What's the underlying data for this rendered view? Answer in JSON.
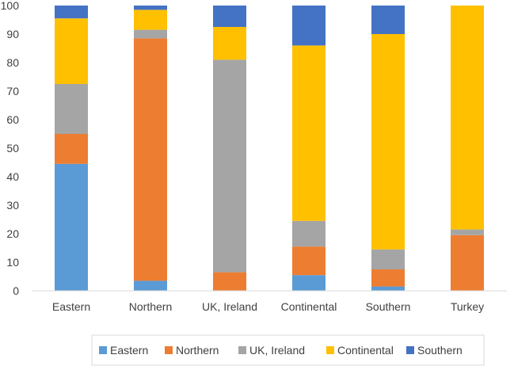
{
  "chart_data": {
    "type": "bar",
    "stacked": true,
    "categories": [
      "Eastern",
      "Northern",
      "UK, Ireland",
      "Continental",
      "Southern",
      "Turkey"
    ],
    "series": [
      {
        "name": "Eastern",
        "color": "#5B9BD5",
        "values": [
          44.5,
          3.5,
          0,
          5.5,
          1.5,
          0
        ]
      },
      {
        "name": "Northern",
        "color": "#ED7D31",
        "values": [
          10.5,
          85,
          6.5,
          10,
          6,
          19.5
        ]
      },
      {
        "name": "UK, Ireland",
        "color": "#A5A5A5",
        "values": [
          17.5,
          3,
          74.5,
          9,
          7,
          2
        ]
      },
      {
        "name": "Continental",
        "color": "#FFC000",
        "values": [
          23,
          7,
          11.5,
          61.5,
          75.5,
          78.5
        ]
      },
      {
        "name": "Southern",
        "color": "#4472C4",
        "values": [
          4.5,
          1.5,
          7.5,
          14,
          10,
          0
        ]
      }
    ],
    "ylim": [
      0,
      100
    ],
    "yticks": [
      0,
      10,
      20,
      30,
      40,
      50,
      60,
      70,
      80,
      90,
      100
    ],
    "grid": false,
    "legend_position": "bottom",
    "axis_color": "#D9D9D9",
    "legend_border_color": "#D9D9D9",
    "text_color": "#404040"
  }
}
